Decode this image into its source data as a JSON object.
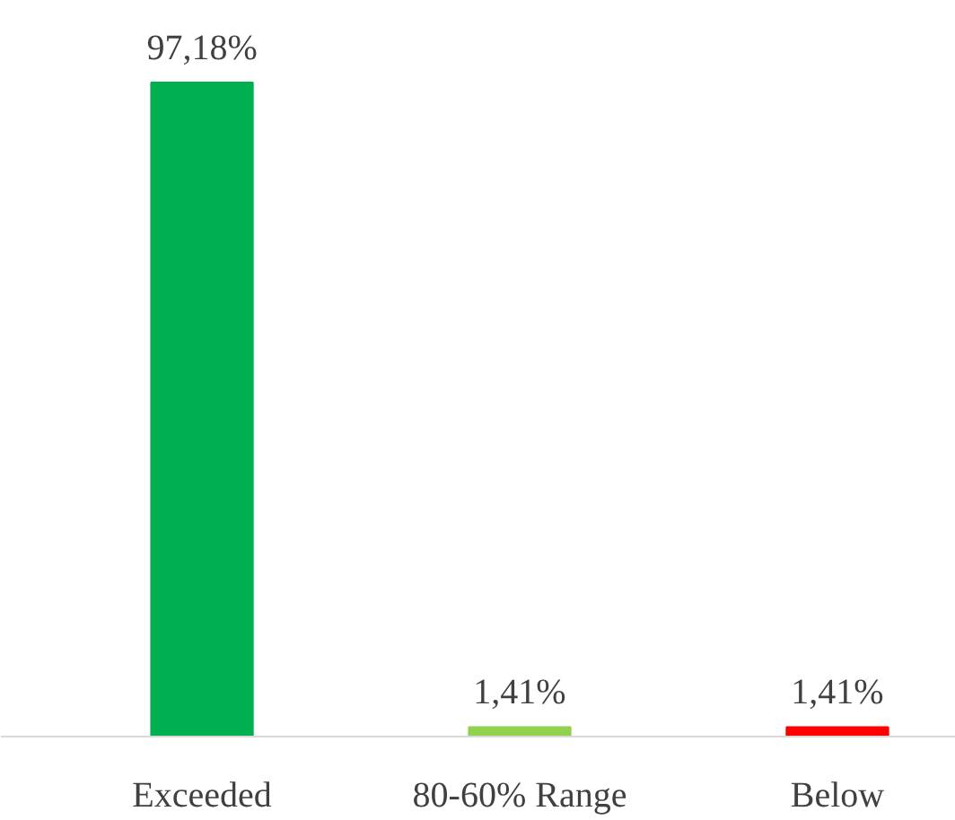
{
  "chart_data": {
    "type": "bar",
    "categories": [
      "Exceeded",
      "80-60% Range",
      "Below"
    ],
    "values": [
      97.18,
      1.41,
      1.41
    ],
    "colors": [
      "#00b050",
      "#92d050",
      "#ff0000"
    ],
    "value_labels": [
      "97,18%",
      "1,41%",
      "1,41%"
    ],
    "grid": false
  }
}
